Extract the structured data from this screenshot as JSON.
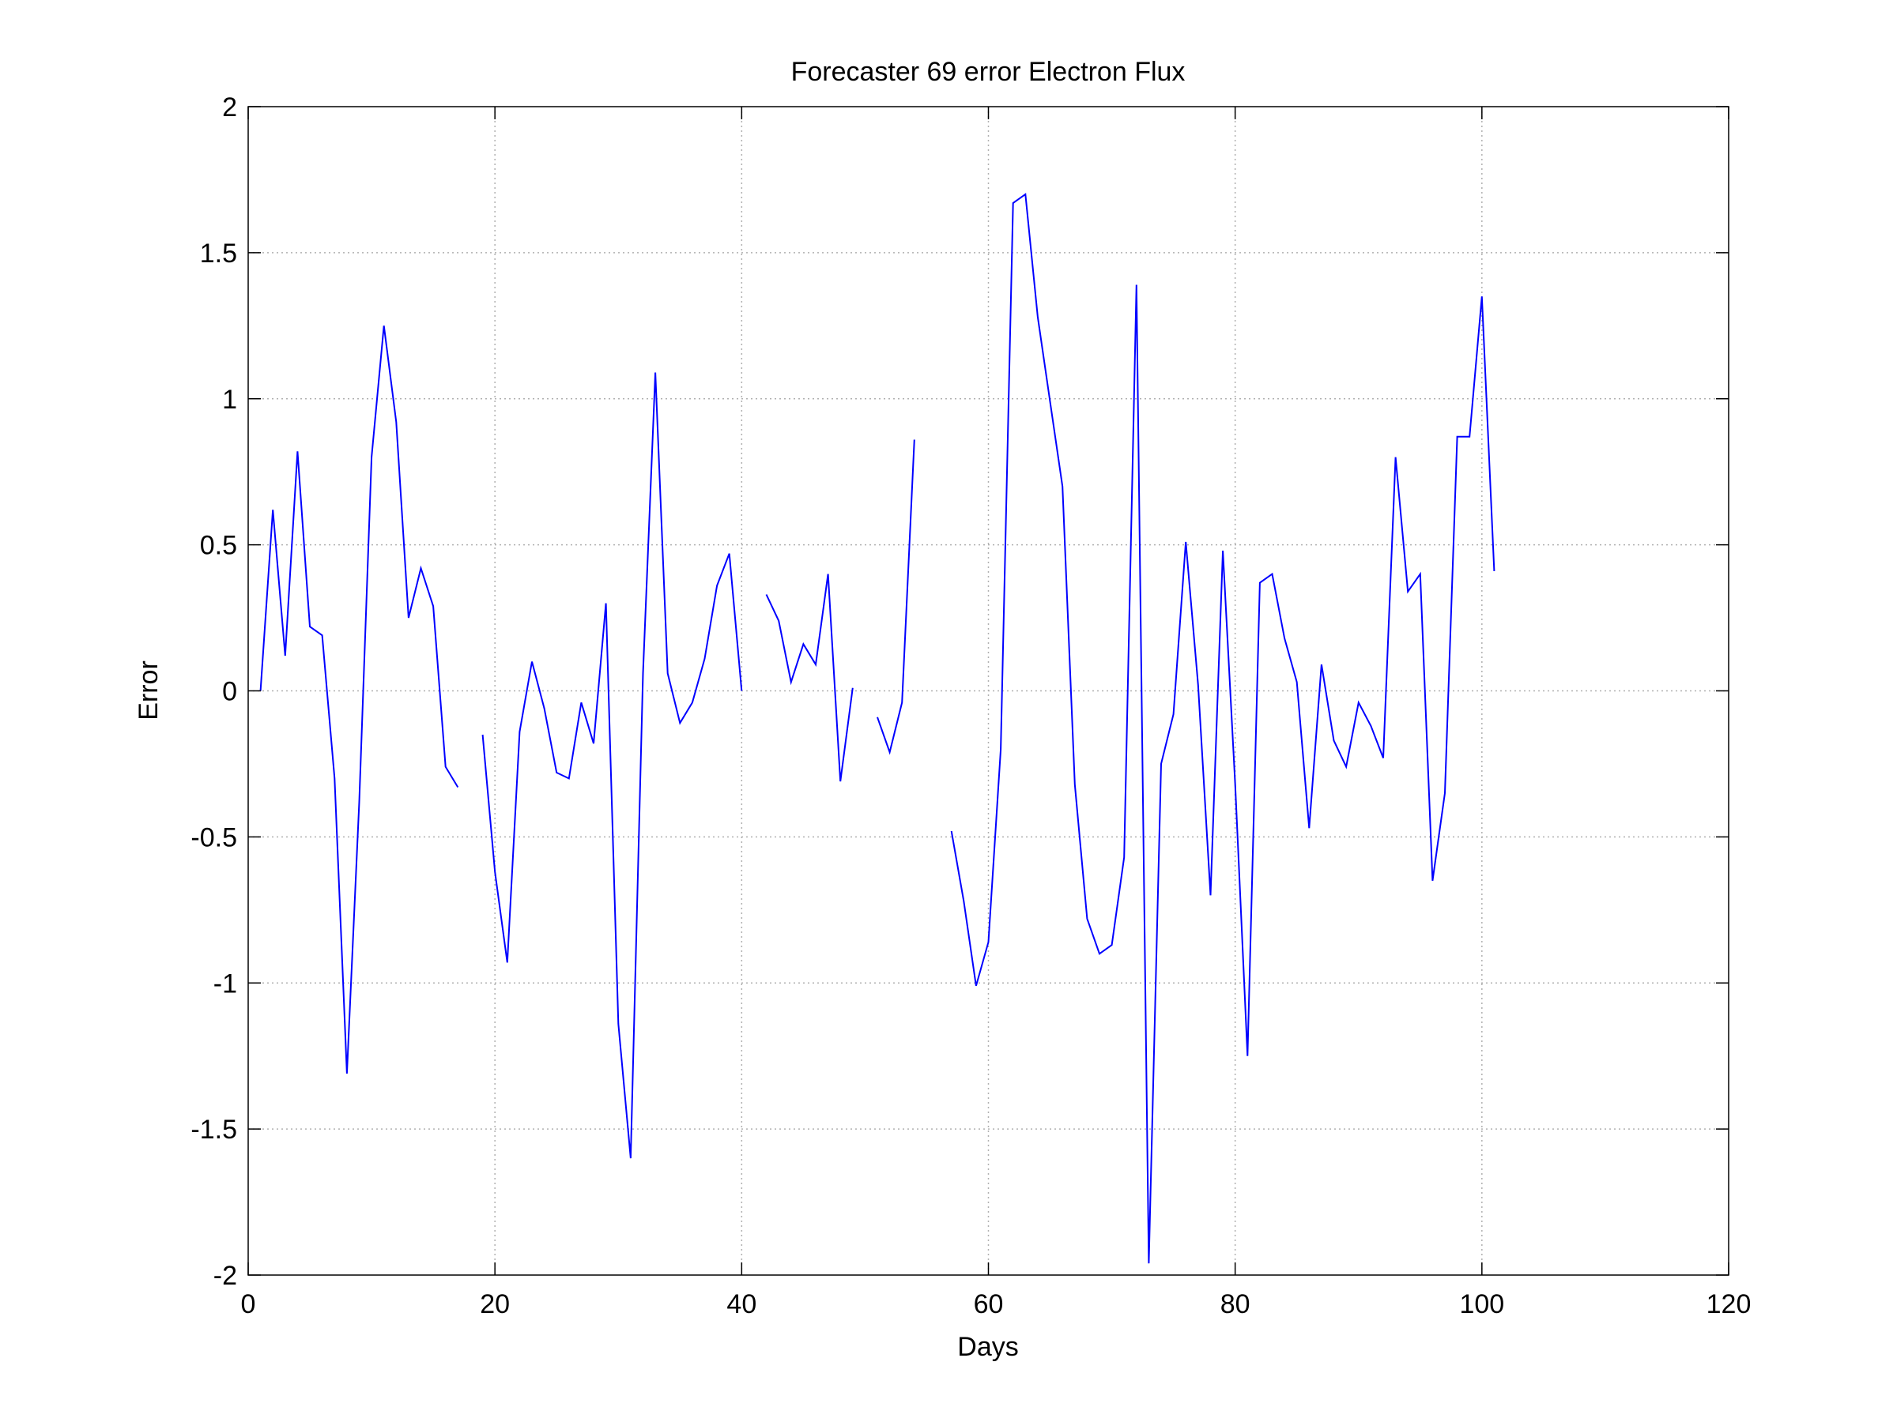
{
  "chart_data": {
    "type": "line",
    "title": "Forecaster 69 error  Electron Flux",
    "xlabel": "Days",
    "ylabel": "Error",
    "xlim": [
      0,
      120
    ],
    "ylim": [
      -2,
      2
    ],
    "xticks": [
      0,
      20,
      40,
      60,
      80,
      100,
      120
    ],
    "yticks": [
      -2,
      -1.5,
      -1,
      -0.5,
      0,
      0.5,
      1,
      1.5,
      2
    ],
    "xtick_labels": [
      "0",
      "20",
      "40",
      "60",
      "80",
      "100",
      "120"
    ],
    "ytick_labels": [
      "-2",
      "-1.5",
      "-1",
      "-0.5",
      "0",
      "0.5",
      "1",
      "1.5",
      "2"
    ],
    "grid": true,
    "legend": null,
    "series": [
      {
        "color": "#0000ff",
        "points": [
          [
            1,
            0
          ],
          [
            2,
            0.62
          ],
          [
            3,
            0.12
          ],
          [
            4,
            0.82
          ],
          [
            5,
            0.22
          ],
          [
            6,
            0.19
          ],
          [
            7,
            -0.3
          ],
          [
            8,
            -1.31
          ],
          [
            9,
            -0.38
          ],
          [
            10,
            0.8
          ],
          [
            11,
            1.25
          ],
          [
            12,
            0.92
          ],
          [
            13,
            0.25
          ],
          [
            14,
            0.42
          ],
          [
            15,
            0.29
          ],
          [
            16,
            -0.26
          ],
          [
            17,
            -0.33
          ],
          [
            18,
            null
          ],
          [
            19,
            -0.15
          ],
          [
            20,
            -0.62
          ],
          [
            21,
            -0.93
          ],
          [
            22,
            -0.14
          ],
          [
            23,
            0.1
          ],
          [
            24,
            -0.06
          ],
          [
            25,
            -0.28
          ],
          [
            26,
            -0.3
          ],
          [
            27,
            -0.04
          ],
          [
            28,
            -0.18
          ],
          [
            29,
            0.3
          ],
          [
            30,
            -1.14
          ],
          [
            31,
            -1.6
          ],
          [
            32,
            0.06
          ],
          [
            33,
            1.09
          ],
          [
            34,
            0.06
          ],
          [
            35,
            -0.11
          ],
          [
            36,
            -0.04
          ],
          [
            37,
            0.11
          ],
          [
            38,
            0.36
          ],
          [
            39,
            0.47
          ],
          [
            40,
            0
          ],
          [
            41,
            null
          ],
          [
            42,
            0.33
          ],
          [
            43,
            0.24
          ],
          [
            44,
            0.03
          ],
          [
            45,
            0.16
          ],
          [
            46,
            0.09
          ],
          [
            47,
            0.4
          ],
          [
            48,
            -0.31
          ],
          [
            49,
            0.01
          ],
          [
            50,
            null
          ],
          [
            51,
            -0.09
          ],
          [
            52,
            -0.21
          ],
          [
            53,
            -0.04
          ],
          [
            54,
            0.86
          ],
          [
            55,
            null
          ],
          [
            56,
            null
          ],
          [
            57,
            -0.48
          ],
          [
            58,
            -0.72
          ],
          [
            59,
            -1.01
          ],
          [
            60,
            -0.86
          ],
          [
            61,
            -0.2
          ],
          [
            62,
            1.67
          ],
          [
            63,
            1.7
          ],
          [
            64,
            1.28
          ],
          [
            65,
            0.99
          ],
          [
            66,
            0.7
          ],
          [
            67,
            -0.32
          ],
          [
            68,
            -0.78
          ],
          [
            69,
            -0.9
          ],
          [
            70,
            -0.87
          ],
          [
            71,
            -0.57
          ],
          [
            72,
            1.39
          ],
          [
            73,
            -1.96
          ],
          [
            74,
            -0.25
          ],
          [
            75,
            -0.08
          ],
          [
            76,
            0.51
          ],
          [
            77,
            0.02
          ],
          [
            78,
            -0.7
          ],
          [
            79,
            0.48
          ],
          [
            80,
            -0.32
          ],
          [
            81,
            -1.25
          ],
          [
            82,
            0.37
          ],
          [
            83,
            0.4
          ],
          [
            84,
            0.18
          ],
          [
            85,
            0.03
          ],
          [
            86,
            -0.47
          ],
          [
            87,
            0.09
          ],
          [
            88,
            -0.17
          ],
          [
            89,
            -0.26
          ],
          [
            90,
            -0.04
          ],
          [
            91,
            -0.12
          ],
          [
            92,
            -0.23
          ],
          [
            93,
            0.8
          ],
          [
            94,
            0.34
          ],
          [
            95,
            0.4
          ],
          [
            96,
            -0.65
          ],
          [
            97,
            -0.35
          ],
          [
            98,
            0.87
          ],
          [
            99,
            0.87
          ],
          [
            100,
            1.35
          ],
          [
            101,
            0.41
          ]
        ]
      }
    ]
  }
}
